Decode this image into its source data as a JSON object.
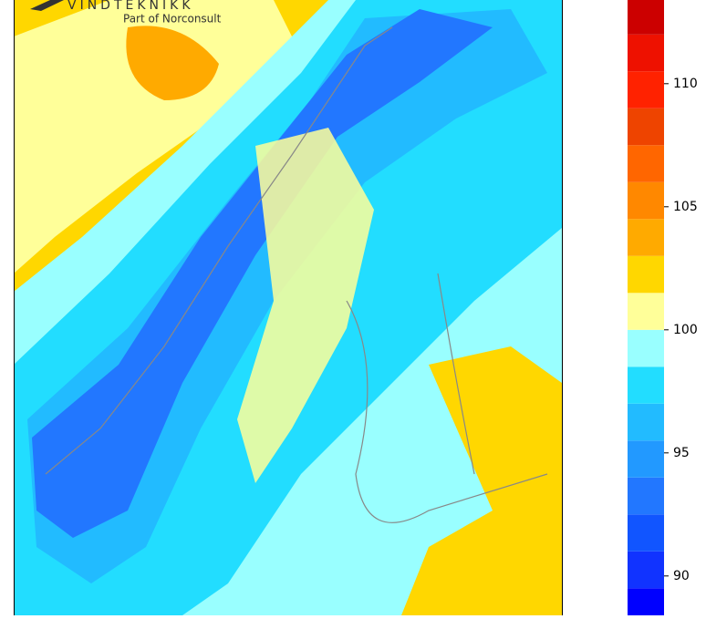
{
  "logo": {
    "name": "VINDTEKNIKK",
    "tagline": "Part of Norconsult"
  },
  "colorbar": {
    "ylim": [
      88.4,
      113.4
    ],
    "levels": [
      89.5,
      91,
      92.5,
      94,
      95.5,
      97,
      98.5,
      100,
      101.5,
      103,
      104.5,
      106,
      107.5,
      109,
      110.5,
      112
    ],
    "colors": [
      "#0000ff",
      "#1133ff",
      "#1155ff",
      "#2277ff",
      "#2299ff",
      "#22bbff",
      "#22ddff",
      "#99ffff",
      "#ffff99",
      "#ffd700",
      "#ffaa00",
      "#ff8800",
      "#ff6600",
      "#ee4400",
      "#ff2200",
      "#ee1100",
      "#cc0000"
    ],
    "yticks": [
      90,
      95,
      100,
      105,
      110
    ]
  }
}
